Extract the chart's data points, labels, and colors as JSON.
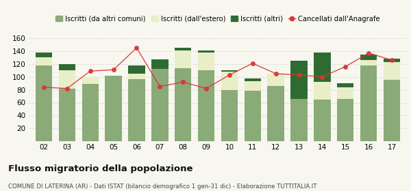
{
  "years": [
    "02",
    "03",
    "04",
    "05",
    "06",
    "07",
    "08",
    "09",
    "10",
    "11",
    "12",
    "13",
    "14",
    "15",
    "16",
    "17"
  ],
  "iscritti_comuni": [
    118,
    82,
    89,
    102,
    97,
    112,
    113,
    110,
    80,
    78,
    86,
    66,
    65,
    66,
    118,
    95
  ],
  "iscritti_estero": [
    12,
    28,
    11,
    0,
    8,
    0,
    28,
    28,
    28,
    15,
    19,
    0,
    27,
    18,
    8,
    28
  ],
  "iscritti_altri": [
    8,
    10,
    0,
    0,
    13,
    15,
    4,
    3,
    2,
    5,
    0,
    59,
    46,
    6,
    9,
    5
  ],
  "cancellati": [
    84,
    82,
    109,
    111,
    145,
    85,
    92,
    82,
    103,
    121,
    105,
    103,
    100,
    116,
    137,
    126
  ],
  "color_comuni": "#8aaa78",
  "color_estero": "#e8eec8",
  "color_altri": "#2e6b33",
  "color_cancellati": "#d93535",
  "legend_labels": [
    "Iscritti (da altri comuni)",
    "Iscritti (dall'estero)",
    "Iscritti (altri)",
    "Cancellati dall'Anagrafe"
  ],
  "title": "Flusso migratorio della popolazione",
  "subtitle": "COMUNE DI LATERINA (AR) - Dati ISTAT (bilancio demografico 1 gen-31 dic) - Elaborazione TUTTITALIA.IT",
  "ylim": [
    0,
    160
  ],
  "yticks": [
    20,
    40,
    60,
    80,
    100,
    120,
    140,
    160
  ],
  "grid_color": "#d8d8d8",
  "bg_color": "#f7f7f0"
}
